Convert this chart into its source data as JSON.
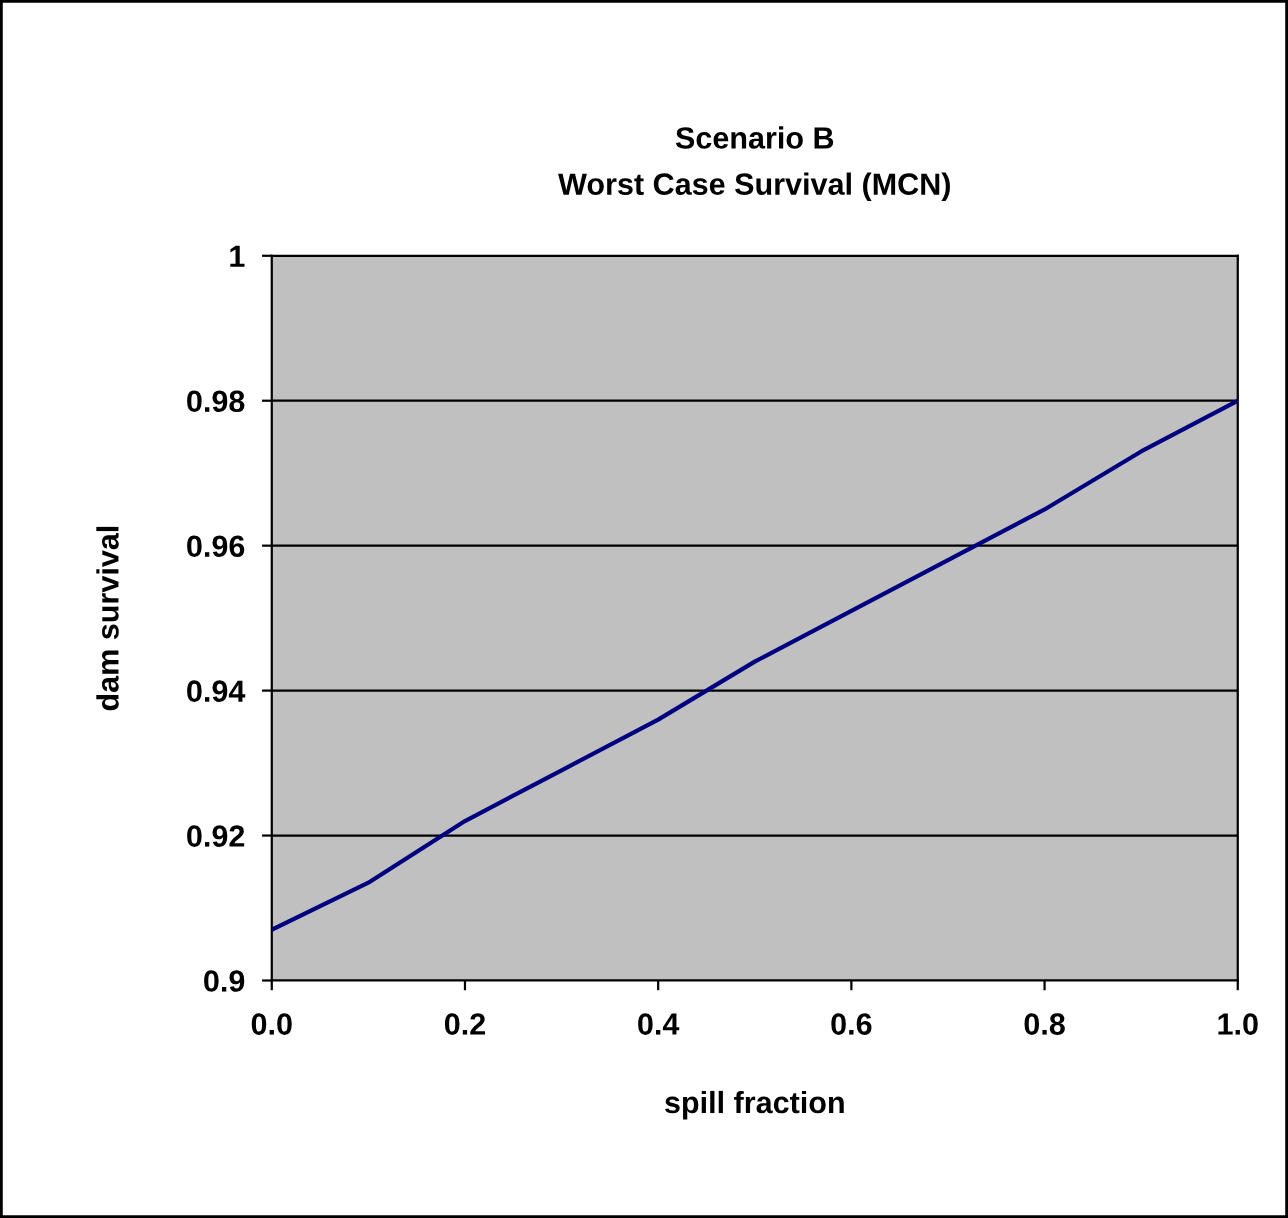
{
  "chart_data": {
    "type": "line",
    "title": "Scenario B\nWorst Case Survival (MCN)",
    "xlabel": "spill fraction",
    "ylabel": "dam survival",
    "x": [
      0.0,
      0.1,
      0.2,
      0.3,
      0.4,
      0.5,
      0.6,
      0.7,
      0.8,
      0.9,
      1.0
    ],
    "series": [
      {
        "color": "#000080",
        "values": [
          0.907,
          0.9135,
          0.922,
          0.929,
          0.936,
          0.944,
          0.951,
          0.958,
          0.965,
          0.973,
          0.98
        ]
      }
    ],
    "xlim": [
      0.0,
      1.0
    ],
    "xticks": [
      {
        "value": 0.0,
        "label": "0.0"
      },
      0.2,
      0.4,
      0.6,
      0.8,
      {
        "value": 1.0,
        "label": "1.0"
      }
    ],
    "ylim": [
      0.9,
      1.0
    ],
    "yticks": [
      0.9,
      0.92,
      0.94,
      0.96,
      0.98,
      {
        "value": 1.0,
        "label": "1"
      }
    ],
    "grid": "y",
    "marker": "none",
    "line_style": "solid"
  }
}
